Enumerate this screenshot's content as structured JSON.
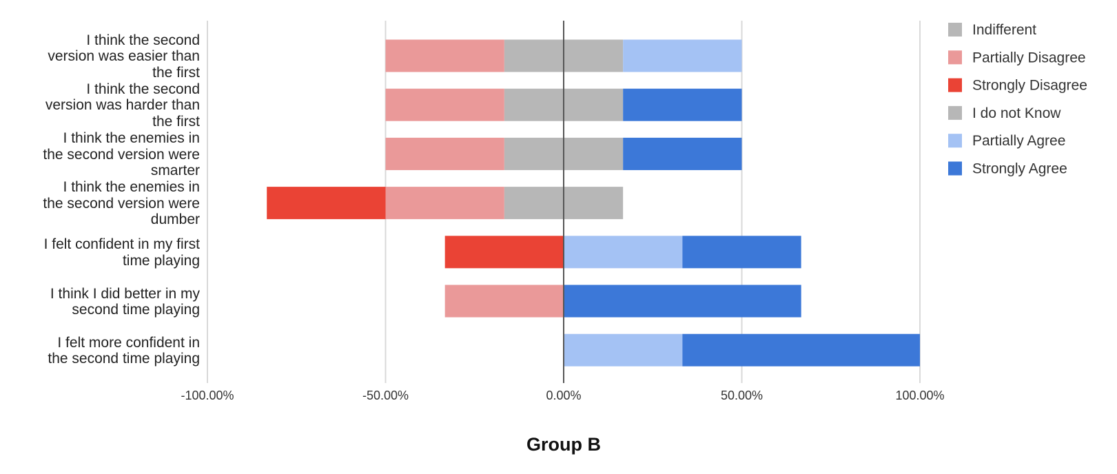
{
  "chart_data": {
    "type": "bar",
    "orientation": "horizontal",
    "stacked": "diverging",
    "title": "",
    "xlabel": "Group B",
    "ylabel": "",
    "xlim": [
      -1.0,
      1.0
    ],
    "x_ticks": [
      "-100.00%",
      "-50.00%",
      "0.00%",
      "50.00%",
      "100.00%"
    ],
    "grid": true,
    "legend_position": "right",
    "categories": [
      "I think the second version was easier than the first",
      "I think the second version was harder than the first",
      "I think the enemies in the second version were smarter",
      "I think the enemies in the second version were dumber",
      "I felt confident in my first time playing",
      "I think I did better in my second time playing",
      "I felt more confident in the second time playing"
    ],
    "category_lines": [
      [
        "I think the second",
        "version was easier than",
        "the first"
      ],
      [
        "I think the second",
        "version was harder than",
        "the first"
      ],
      [
        "I think the enemies in",
        "the second version were",
        "smarter"
      ],
      [
        "I think the enemies in",
        "the second version were",
        "dumber"
      ],
      [
        "I felt confident in my first",
        "time playing"
      ],
      [
        "I think I did better in my",
        "second time playing"
      ],
      [
        "I felt more confident in",
        "the second time playing"
      ]
    ],
    "series": [
      {
        "name": "Indifferent",
        "color": "#b7b7b7",
        "side": "split",
        "values": [
          0.3333,
          0.3333,
          0.3333,
          0.3333,
          0,
          0,
          0
        ]
      },
      {
        "name": "Partially Disagree",
        "color": "#ea9999",
        "side": "negative",
        "values": [
          0.3333,
          0.3333,
          0.3333,
          0.3333,
          0,
          0.3333,
          0
        ]
      },
      {
        "name": "Strongly Disagree",
        "color": "#ea4335",
        "side": "negative",
        "values": [
          0,
          0,
          0,
          0.3333,
          0.3333,
          0,
          0
        ]
      },
      {
        "name": "I do not Know",
        "color": "#b7b7b7",
        "side": "split",
        "values": [
          0,
          0,
          0,
          0,
          0,
          0,
          0
        ]
      },
      {
        "name": "Partially Agree",
        "color": "#a4c2f4",
        "side": "positive",
        "values": [
          0.3333,
          0,
          0,
          0,
          0.3333,
          0,
          0.3333
        ]
      },
      {
        "name": "Strongly Agree",
        "color": "#3c78d8",
        "side": "positive",
        "values": [
          0,
          0.3333,
          0.3333,
          0,
          0.3333,
          0.6667,
          0.6667
        ]
      }
    ]
  }
}
